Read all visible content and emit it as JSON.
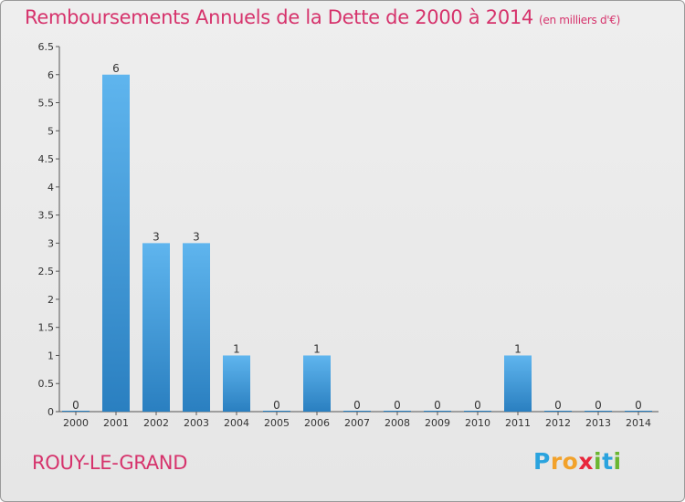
{
  "title": "Remboursements Annuels de la Dette de 2000 à 2014",
  "unit_note": "(en milliers d'€)",
  "city": "ROUY-LE-GRAND",
  "logo": {
    "letters": [
      "P",
      "r",
      "o",
      "x",
      "i",
      "t",
      "i"
    ],
    "colors": [
      "#2aa3de",
      "#f2a22b",
      "#f2a22b",
      "#e8263b",
      "#6bb631",
      "#2aa3de",
      "#6bb631"
    ]
  },
  "colors": {
    "title": "#d6336c",
    "bar_top": "#5fb5ee",
    "bar_bottom": "#2a7fc0"
  },
  "chart_data": {
    "type": "bar",
    "categories": [
      "2000",
      "2001",
      "2002",
      "2003",
      "2004",
      "2005",
      "2006",
      "2007",
      "2008",
      "2009",
      "2010",
      "2011",
      "2012",
      "2013",
      "2014"
    ],
    "values": [
      0,
      6,
      3,
      3,
      1,
      0,
      1,
      0,
      0,
      0,
      0,
      1,
      0,
      0,
      0
    ],
    "value_labels": [
      "0",
      "6",
      "3",
      "3",
      "1",
      "0",
      "1",
      "0",
      "0",
      "0",
      "0",
      "1",
      "0",
      "0",
      "0"
    ],
    "y_ticks": [
      "0",
      "0.5",
      "1",
      "1.5",
      "2",
      "2.5",
      "3",
      "3.5",
      "4",
      "4.5",
      "5",
      "5.5",
      "6",
      "6.5"
    ],
    "ylim": [
      0,
      6.5
    ],
    "grid": false
  }
}
